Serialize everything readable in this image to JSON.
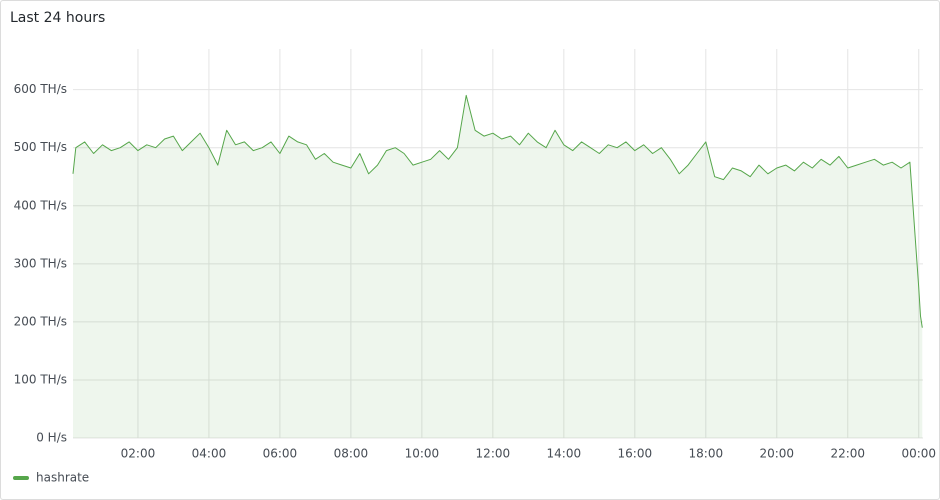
{
  "chart_data": {
    "type": "line",
    "title": "Last 24 hours",
    "x": [
      0.17,
      0.25,
      0.5,
      0.75,
      1,
      1.25,
      1.5,
      1.75,
      2,
      2.25,
      2.5,
      2.75,
      3,
      3.25,
      3.5,
      3.75,
      4,
      4.25,
      4.5,
      4.75,
      5,
      5.25,
      5.5,
      5.75,
      6,
      6.25,
      6.5,
      6.75,
      7,
      7.25,
      7.5,
      7.75,
      8,
      8.25,
      8.5,
      8.75,
      9,
      9.25,
      9.5,
      9.75,
      10,
      10.25,
      10.5,
      10.75,
      11,
      11.25,
      11.5,
      11.75,
      12,
      12.25,
      12.5,
      12.75,
      13,
      13.25,
      13.5,
      13.75,
      14,
      14.25,
      14.5,
      14.75,
      15,
      15.25,
      15.5,
      15.75,
      16,
      16.25,
      16.5,
      16.75,
      17,
      17.25,
      17.5,
      17.75,
      18,
      18.25,
      18.5,
      18.75,
      19,
      19.25,
      19.5,
      19.75,
      20,
      20.25,
      20.5,
      20.75,
      21,
      21.25,
      21.5,
      21.75,
      22,
      22.25,
      22.5,
      22.75,
      23,
      23.25,
      23.5,
      23.75,
      24,
      24.05,
      24.1
    ],
    "series": [
      {
        "name": "hashrate",
        "color": "#56a64b",
        "values": [
          455,
          500,
          510,
          490,
          505,
          495,
          500,
          510,
          495,
          505,
          500,
          515,
          520,
          495,
          510,
          525,
          500,
          470,
          530,
          505,
          510,
          495,
          500,
          510,
          490,
          520,
          510,
          505,
          480,
          490,
          475,
          470,
          465,
          490,
          455,
          470,
          495,
          500,
          490,
          470,
          475,
          480,
          495,
          480,
          500,
          590,
          530,
          520,
          525,
          515,
          520,
          505,
          525,
          510,
          500,
          530,
          505,
          495,
          510,
          500,
          490,
          505,
          500,
          510,
          495,
          505,
          490,
          500,
          480,
          455,
          470,
          490,
          510,
          450,
          445,
          465,
          460,
          450,
          470,
          455,
          465,
          470,
          460,
          475,
          465,
          480,
          470,
          485,
          465,
          470,
          475,
          480,
          470,
          475,
          465,
          475,
          260,
          210,
          190
        ]
      }
    ],
    "xlim": [
      0.17,
      24.12
    ],
    "xticks": [
      {
        "value": 2,
        "label": "02:00"
      },
      {
        "value": 4,
        "label": "04:00"
      },
      {
        "value": 6,
        "label": "06:00"
      },
      {
        "value": 8,
        "label": "08:00"
      },
      {
        "value": 10,
        "label": "10:00"
      },
      {
        "value": 12,
        "label": "12:00"
      },
      {
        "value": 14,
        "label": "14:00"
      },
      {
        "value": 16,
        "label": "16:00"
      },
      {
        "value": 18,
        "label": "18:00"
      },
      {
        "value": 20,
        "label": "20:00"
      },
      {
        "value": 22,
        "label": "22:00"
      },
      {
        "value": 24,
        "label": "00:00"
      }
    ],
    "ylim": [
      0,
      670
    ],
    "yticks": [
      {
        "value": 0,
        "label": "0 H/s"
      },
      {
        "value": 100,
        "label": "100 TH/s"
      },
      {
        "value": 200,
        "label": "200 TH/s"
      },
      {
        "value": 300,
        "label": "300 TH/s"
      },
      {
        "value": 400,
        "label": "400 TH/s"
      },
      {
        "value": 500,
        "label": "500 TH/s"
      },
      {
        "value": 600,
        "label": "600 TH/s"
      }
    ],
    "grid": true
  }
}
